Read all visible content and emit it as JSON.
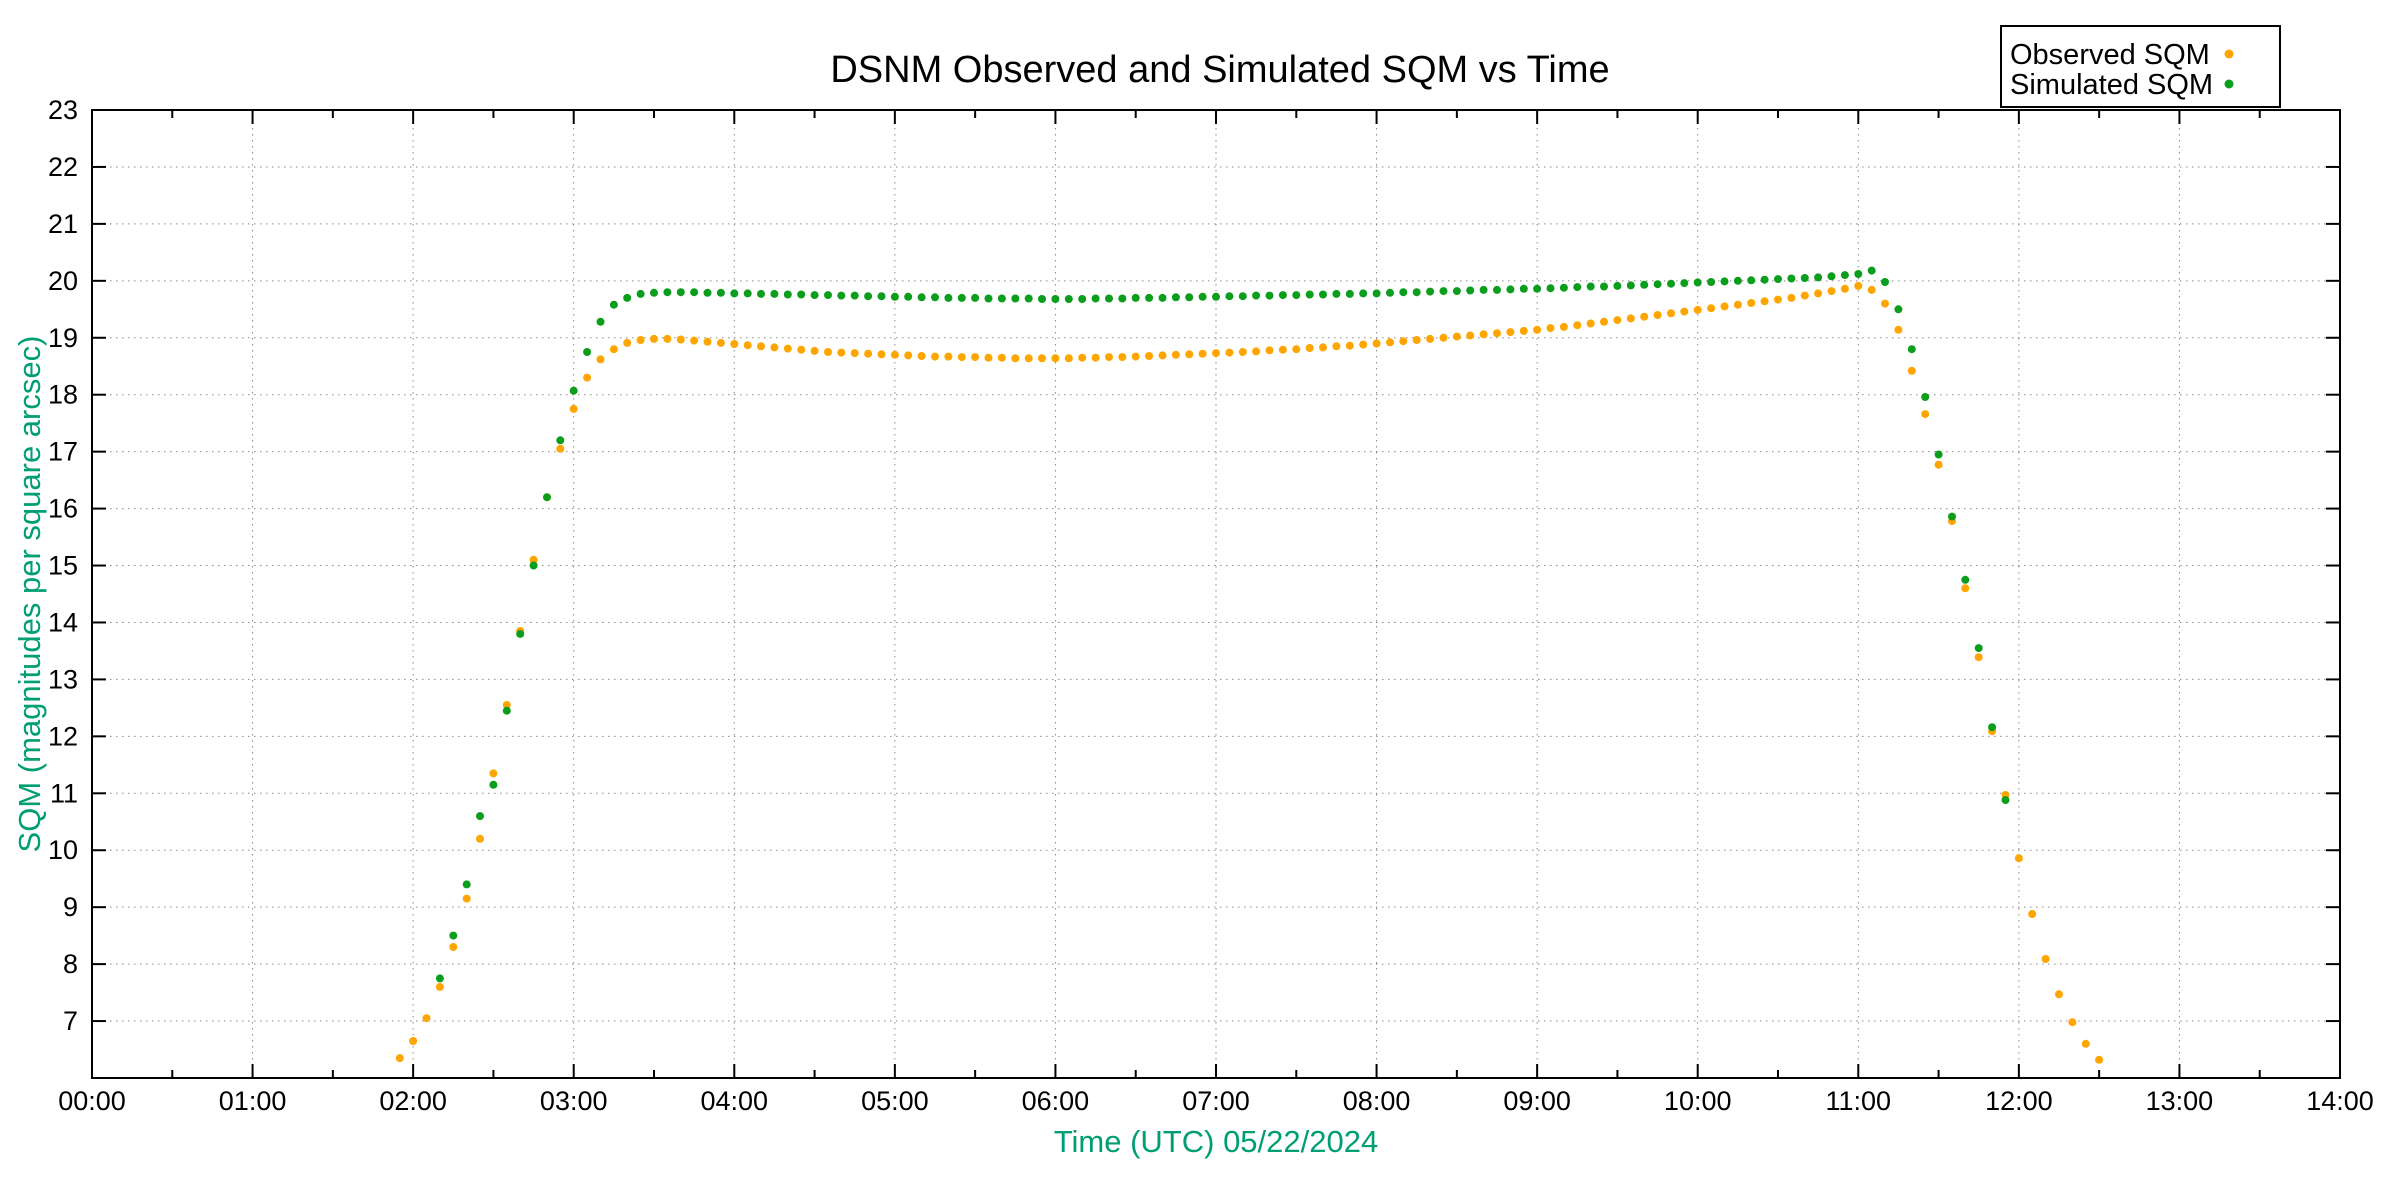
{
  "chart_data": {
    "type": "scatter",
    "title": "DSNM Observed and Simulated SQM vs Time",
    "xlabel": "Time (UTC)   05/22/2024",
    "ylabel": "SQM (magnitudes per square arcsec)",
    "x_range": [
      0,
      14
    ],
    "y_range": [
      6,
      23
    ],
    "x_tick_labels": [
      "00:00",
      "01:00",
      "02:00",
      "03:00",
      "04:00",
      "05:00",
      "06:00",
      "07:00",
      "08:00",
      "09:00",
      "10:00",
      "11:00",
      "12:00",
      "13:00",
      "14:00"
    ],
    "y_tick_labels": [
      7,
      8,
      9,
      10,
      11,
      12,
      13,
      14,
      15,
      16,
      17,
      18,
      19,
      20,
      21,
      22,
      23
    ],
    "grid": "dotted",
    "legend_position": "top-right-outside",
    "marker": "dot",
    "axis_label_color": "#009e73",
    "grid_color": "#8a8a8a",
    "series": [
      {
        "name": "Observed SQM",
        "color": "#ffa500",
        "points": [
          [
            "01:55",
            6.35
          ],
          [
            "02:00",
            6.65
          ],
          [
            "02:05",
            7.05
          ],
          [
            "02:10",
            7.6
          ],
          [
            "02:15",
            8.3
          ],
          [
            "02:20",
            9.15
          ],
          [
            "02:25",
            10.2
          ],
          [
            "02:30",
            11.35
          ],
          [
            "02:35",
            12.55
          ],
          [
            "02:40",
            13.85
          ],
          [
            "02:45",
            15.1
          ],
          [
            "02:50",
            16.2
          ],
          [
            "02:55",
            17.05
          ],
          [
            "03:00",
            17.75
          ],
          [
            "03:05",
            18.3
          ],
          [
            "03:10",
            18.62
          ],
          [
            "03:15",
            18.8
          ],
          [
            "03:20",
            18.91
          ],
          [
            "03:25",
            18.96
          ],
          [
            "03:30",
            18.98
          ],
          [
            "03:35",
            18.98
          ],
          [
            "03:40",
            18.97
          ],
          [
            "03:45",
            18.95
          ],
          [
            "03:50",
            18.93
          ],
          [
            "03:55",
            18.91
          ],
          [
            "04:00",
            18.89
          ],
          [
            "04:05",
            18.87
          ],
          [
            "04:10",
            18.85
          ],
          [
            "04:15",
            18.83
          ],
          [
            "04:20",
            18.81
          ],
          [
            "04:25",
            18.79
          ],
          [
            "04:30",
            18.77
          ],
          [
            "04:35",
            18.75
          ],
          [
            "04:40",
            18.74
          ],
          [
            "04:45",
            18.73
          ],
          [
            "04:50",
            18.72
          ],
          [
            "04:55",
            18.71
          ],
          [
            "05:00",
            18.7
          ],
          [
            "05:05",
            18.69
          ],
          [
            "05:10",
            18.68
          ],
          [
            "05:15",
            18.67
          ],
          [
            "05:20",
            18.67
          ],
          [
            "05:25",
            18.66
          ],
          [
            "05:30",
            18.66
          ],
          [
            "05:35",
            18.65
          ],
          [
            "05:40",
            18.65
          ],
          [
            "05:45",
            18.64
          ],
          [
            "05:50",
            18.64
          ],
          [
            "05:55",
            18.64
          ],
          [
            "06:00",
            18.64
          ],
          [
            "06:05",
            18.64
          ],
          [
            "06:10",
            18.65
          ],
          [
            "06:15",
            18.65
          ],
          [
            "06:20",
            18.66
          ],
          [
            "06:25",
            18.66
          ],
          [
            "06:30",
            18.67
          ],
          [
            "06:35",
            18.68
          ],
          [
            "06:40",
            18.69
          ],
          [
            "06:45",
            18.7
          ],
          [
            "06:50",
            18.71
          ],
          [
            "06:55",
            18.72
          ],
          [
            "07:00",
            18.73
          ],
          [
            "07:05",
            18.74
          ],
          [
            "07:10",
            18.75
          ],
          [
            "07:15",
            18.76
          ],
          [
            "07:20",
            18.78
          ],
          [
            "07:25",
            18.79
          ],
          [
            "07:30",
            18.8
          ],
          [
            "07:35",
            18.82
          ],
          [
            "07:40",
            18.83
          ],
          [
            "07:45",
            18.85
          ],
          [
            "07:50",
            18.86
          ],
          [
            "07:55",
            18.88
          ],
          [
            "08:00",
            18.9
          ],
          [
            "08:05",
            18.92
          ],
          [
            "08:10",
            18.94
          ],
          [
            "08:15",
            18.96
          ],
          [
            "08:20",
            18.98
          ],
          [
            "08:25",
            19.0
          ],
          [
            "08:30",
            19.02
          ],
          [
            "08:35",
            19.04
          ],
          [
            "08:40",
            19.06
          ],
          [
            "08:45",
            19.08
          ],
          [
            "08:50",
            19.1
          ],
          [
            "08:55",
            19.12
          ],
          [
            "09:00",
            19.14
          ],
          [
            "09:05",
            19.17
          ],
          [
            "09:10",
            19.19
          ],
          [
            "09:15",
            19.22
          ],
          [
            "09:20",
            19.25
          ],
          [
            "09:25",
            19.28
          ],
          [
            "09:30",
            19.31
          ],
          [
            "09:35",
            19.34
          ],
          [
            "09:40",
            19.37
          ],
          [
            "09:45",
            19.4
          ],
          [
            "09:50",
            19.43
          ],
          [
            "09:55",
            19.46
          ],
          [
            "10:00",
            19.49
          ],
          [
            "10:05",
            19.52
          ],
          [
            "10:10",
            19.55
          ],
          [
            "10:15",
            19.58
          ],
          [
            "10:20",
            19.61
          ],
          [
            "10:25",
            19.64
          ],
          [
            "10:30",
            19.67
          ],
          [
            "10:35",
            19.7
          ],
          [
            "10:40",
            19.74
          ],
          [
            "10:45",
            19.78
          ],
          [
            "10:50",
            19.82
          ],
          [
            "10:55",
            19.86
          ],
          [
            "11:00",
            19.91
          ],
          [
            "11:05",
            19.84
          ],
          [
            "11:10",
            19.6
          ],
          [
            "11:15",
            19.14
          ],
          [
            "11:20",
            18.42
          ],
          [
            "11:25",
            17.66
          ],
          [
            "11:30",
            16.77
          ],
          [
            "11:35",
            15.78
          ],
          [
            "11:40",
            14.6
          ],
          [
            "11:45",
            13.39
          ],
          [
            "11:50",
            12.09
          ],
          [
            "11:55",
            10.97
          ],
          [
            "12:00",
            9.86
          ],
          [
            "12:05",
            8.88
          ],
          [
            "12:10",
            8.09
          ],
          [
            "12:15",
            7.47
          ],
          [
            "12:20",
            6.98
          ],
          [
            "12:25",
            6.6
          ],
          [
            "12:30",
            6.32
          ]
        ]
      },
      {
        "name": "Simulated SQM",
        "color": "#0b9e1d",
        "points": [
          [
            "02:10",
            7.75
          ],
          [
            "02:15",
            8.5
          ],
          [
            "02:20",
            9.4
          ],
          [
            "02:25",
            10.6
          ],
          [
            "02:30",
            11.15
          ],
          [
            "02:35",
            12.45
          ],
          [
            "02:40",
            13.8
          ],
          [
            "02:45",
            15.0
          ],
          [
            "02:50",
            16.2
          ],
          [
            "02:55",
            17.2
          ],
          [
            "03:00",
            18.07
          ],
          [
            "03:05",
            18.75
          ],
          [
            "03:10",
            19.28
          ],
          [
            "03:15",
            19.58
          ],
          [
            "03:20",
            19.7
          ],
          [
            "03:25",
            19.77
          ],
          [
            "03:30",
            19.79
          ],
          [
            "03:35",
            19.8
          ],
          [
            "03:40",
            19.8
          ],
          [
            "03:45",
            19.8
          ],
          [
            "03:50",
            19.79
          ],
          [
            "03:55",
            19.79
          ],
          [
            "04:00",
            19.78
          ],
          [
            "04:05",
            19.78
          ],
          [
            "04:10",
            19.77
          ],
          [
            "04:15",
            19.77
          ],
          [
            "04:20",
            19.76
          ],
          [
            "04:25",
            19.76
          ],
          [
            "04:30",
            19.75
          ],
          [
            "04:35",
            19.75
          ],
          [
            "04:40",
            19.74
          ],
          [
            "04:45",
            19.74
          ],
          [
            "04:50",
            19.73
          ],
          [
            "04:55",
            19.73
          ],
          [
            "05:00",
            19.72
          ],
          [
            "05:05",
            19.72
          ],
          [
            "05:10",
            19.71
          ],
          [
            "05:15",
            19.71
          ],
          [
            "05:20",
            19.7
          ],
          [
            "05:25",
            19.7
          ],
          [
            "05:30",
            19.7
          ],
          [
            "05:35",
            19.69
          ],
          [
            "05:40",
            19.69
          ],
          [
            "05:45",
            19.69
          ],
          [
            "05:50",
            19.69
          ],
          [
            "05:55",
            19.68
          ],
          [
            "06:00",
            19.68
          ],
          [
            "06:05",
            19.68
          ],
          [
            "06:10",
            19.68
          ],
          [
            "06:15",
            19.69
          ],
          [
            "06:20",
            19.69
          ],
          [
            "06:25",
            19.69
          ],
          [
            "06:30",
            19.7
          ],
          [
            "06:35",
            19.7
          ],
          [
            "06:40",
            19.7
          ],
          [
            "06:45",
            19.71
          ],
          [
            "06:50",
            19.71
          ],
          [
            "06:55",
            19.72
          ],
          [
            "07:00",
            19.72
          ],
          [
            "07:05",
            19.73
          ],
          [
            "07:10",
            19.73
          ],
          [
            "07:15",
            19.74
          ],
          [
            "07:20",
            19.74
          ],
          [
            "07:25",
            19.75
          ],
          [
            "07:30",
            19.75
          ],
          [
            "07:35",
            19.76
          ],
          [
            "07:40",
            19.76
          ],
          [
            "07:45",
            19.77
          ],
          [
            "07:50",
            19.77
          ],
          [
            "07:55",
            19.78
          ],
          [
            "08:00",
            19.78
          ],
          [
            "08:05",
            19.79
          ],
          [
            "08:10",
            19.8
          ],
          [
            "08:15",
            19.8
          ],
          [
            "08:20",
            19.81
          ],
          [
            "08:25",
            19.82
          ],
          [
            "08:30",
            19.82
          ],
          [
            "08:35",
            19.83
          ],
          [
            "08:40",
            19.84
          ],
          [
            "08:45",
            19.84
          ],
          [
            "08:50",
            19.85
          ],
          [
            "08:55",
            19.86
          ],
          [
            "09:00",
            19.86
          ],
          [
            "09:05",
            19.87
          ],
          [
            "09:10",
            19.88
          ],
          [
            "09:15",
            19.89
          ],
          [
            "09:20",
            19.9
          ],
          [
            "09:25",
            19.9
          ],
          [
            "09:30",
            19.91
          ],
          [
            "09:35",
            19.92
          ],
          [
            "09:40",
            19.93
          ],
          [
            "09:45",
            19.94
          ],
          [
            "09:50",
            19.95
          ],
          [
            "09:55",
            19.96
          ],
          [
            "10:00",
            19.97
          ],
          [
            "10:05",
            19.98
          ],
          [
            "10:10",
            19.99
          ],
          [
            "10:15",
            20.0
          ],
          [
            "10:20",
            20.01
          ],
          [
            "10:25",
            20.02
          ],
          [
            "10:30",
            20.03
          ],
          [
            "10:35",
            20.04
          ],
          [
            "10:40",
            20.05
          ],
          [
            "10:45",
            20.06
          ],
          [
            "10:50",
            20.08
          ],
          [
            "10:55",
            20.1
          ],
          [
            "11:00",
            20.12
          ],
          [
            "11:05",
            20.18
          ],
          [
            "11:10",
            19.98
          ],
          [
            "11:15",
            19.5
          ],
          [
            "11:20",
            18.8
          ],
          [
            "11:25",
            17.96
          ],
          [
            "11:30",
            16.95
          ],
          [
            "11:35",
            15.86
          ],
          [
            "11:40",
            14.75
          ],
          [
            "11:45",
            13.55
          ],
          [
            "11:50",
            12.16
          ],
          [
            "11:55",
            10.88
          ]
        ]
      }
    ]
  }
}
